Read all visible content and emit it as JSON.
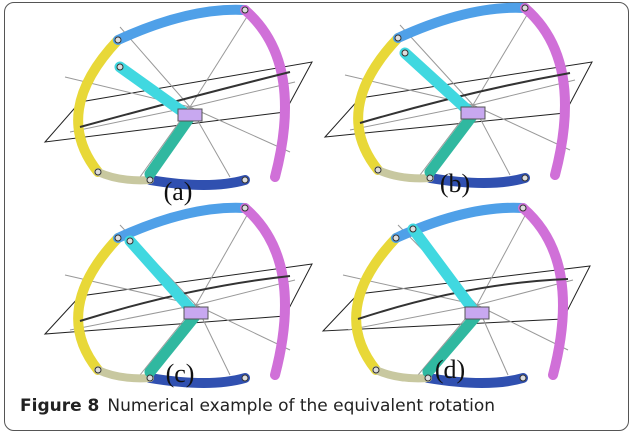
{
  "panels": [
    {
      "label": "(a)"
    },
    {
      "label": "(b)"
    },
    {
      "label": "(c)"
    },
    {
      "label": "(d)"
    }
  ],
  "caption": {
    "label": "Figure 8",
    "text": "Numerical example of the equivalent rotation"
  }
}
